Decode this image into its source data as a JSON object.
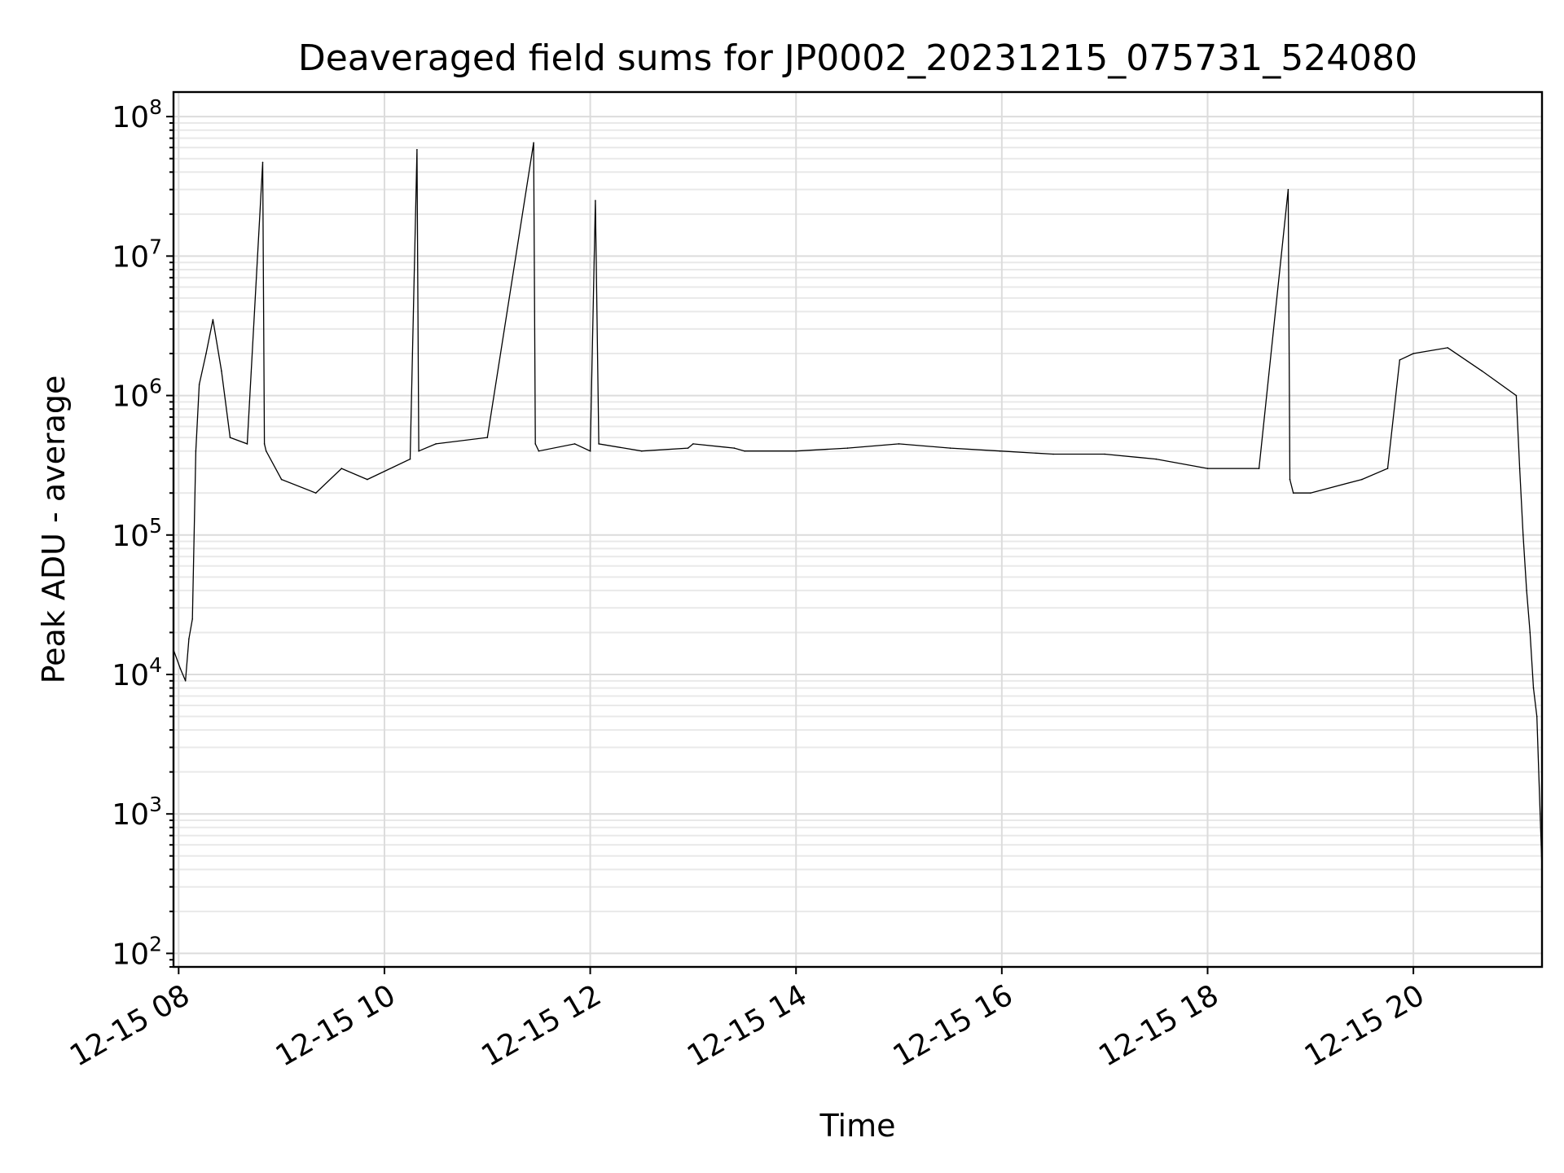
{
  "chart_data": {
    "type": "line",
    "title": "Deaveraged field sums for JP0002_20231215_075731_524080",
    "xlabel": "Time",
    "ylabel": "Peak ADU - average",
    "yscale": "log",
    "ylim": [
      80,
      150000000
    ],
    "xlim": [
      "2023-12-15 07:57",
      "2023-12-15 21:15"
    ],
    "grid": true,
    "legend": "none",
    "line_color": "#000000",
    "x_ticks": [
      "12-15 08",
      "12-15 10",
      "12-15 12",
      "12-15 14",
      "12-15 16",
      "12-15 18",
      "12-15 20"
    ],
    "y_ticks": [
      {
        "base": "10",
        "exp": "2",
        "value": 100
      },
      {
        "base": "10",
        "exp": "3",
        "value": 1000
      },
      {
        "base": "10",
        "exp": "4",
        "value": 10000
      },
      {
        "base": "10",
        "exp": "5",
        "value": 100000
      },
      {
        "base": "10",
        "exp": "6",
        "value": 1000000
      },
      {
        "base": "10",
        "exp": "7",
        "value": 10000000
      },
      {
        "base": "10",
        "exp": "8",
        "value": 100000000
      }
    ],
    "series": [
      {
        "x": [
          "2023-12-15 07:57",
          "2023-12-15 08:01",
          "2023-12-15 08:04",
          "2023-12-15 08:06",
          "2023-12-15 08:08",
          "2023-12-15 08:10",
          "2023-12-15 08:12",
          "2023-12-15 08:16",
          "2023-12-15 08:20",
          "2023-12-15 08:25",
          "2023-12-15 08:30",
          "2023-12-15 08:40",
          "2023-12-15 08:49",
          "2023-12-15 08:50",
          "2023-12-15 08:51",
          "2023-12-15 09:00",
          "2023-12-15 09:20",
          "2023-12-15 09:35",
          "2023-12-15 09:50",
          "2023-12-15 10:15",
          "2023-12-15 10:19",
          "2023-12-15 10:20",
          "2023-12-15 10:30",
          "2023-12-15 11:00",
          "2023-12-15 11:27",
          "2023-12-15 11:28",
          "2023-12-15 11:30",
          "2023-12-15 11:51",
          "2023-12-15 12:00",
          "2023-12-15 12:03",
          "2023-12-15 12:05",
          "2023-12-15 12:30",
          "2023-12-15 12:57",
          "2023-12-15 13:00",
          "2023-12-15 13:24",
          "2023-12-15 13:30",
          "2023-12-15 14:00",
          "2023-12-15 14:30",
          "2023-12-15 15:00",
          "2023-12-15 15:30",
          "2023-12-15 15:59",
          "2023-12-15 16:30",
          "2023-12-15 17:00",
          "2023-12-15 17:30",
          "2023-12-15 18:00",
          "2023-12-15 18:30",
          "2023-12-15 18:47",
          "2023-12-15 18:48",
          "2023-12-15 18:50",
          "2023-12-15 19:00",
          "2023-12-15 19:30",
          "2023-12-15 19:45",
          "2023-12-15 19:52",
          "2023-12-15 20:00",
          "2023-12-15 20:20",
          "2023-12-15 20:40",
          "2023-12-15 21:00",
          "2023-12-15 21:02",
          "2023-12-15 21:04",
          "2023-12-15 21:06",
          "2023-12-15 21:08",
          "2023-12-15 21:10",
          "2023-12-15 21:12",
          "2023-12-15 21:15"
        ],
        "y": [
          15000,
          11000,
          9000,
          18000,
          25000,
          400000,
          1200000,
          2000000,
          3500000,
          1500000,
          500000,
          450000,
          47000000,
          450000,
          400000,
          250000,
          200000,
          300000,
          250000,
          350000,
          58000000,
          400000,
          450000,
          500000,
          65000000,
          450000,
          400000,
          450000,
          400000,
          25000000,
          450000,
          400000,
          420000,
          450000,
          420000,
          400000,
          400000,
          420000,
          450000,
          420000,
          400000,
          380000,
          380000,
          350000,
          300000,
          300000,
          30000000,
          250000,
          200000,
          200000,
          250000,
          300000,
          1800000,
          2000000,
          2200000,
          1500000,
          1000000,
          300000,
          100000,
          40000,
          20000,
          8000,
          5000,
          400
        ]
      }
    ]
  }
}
